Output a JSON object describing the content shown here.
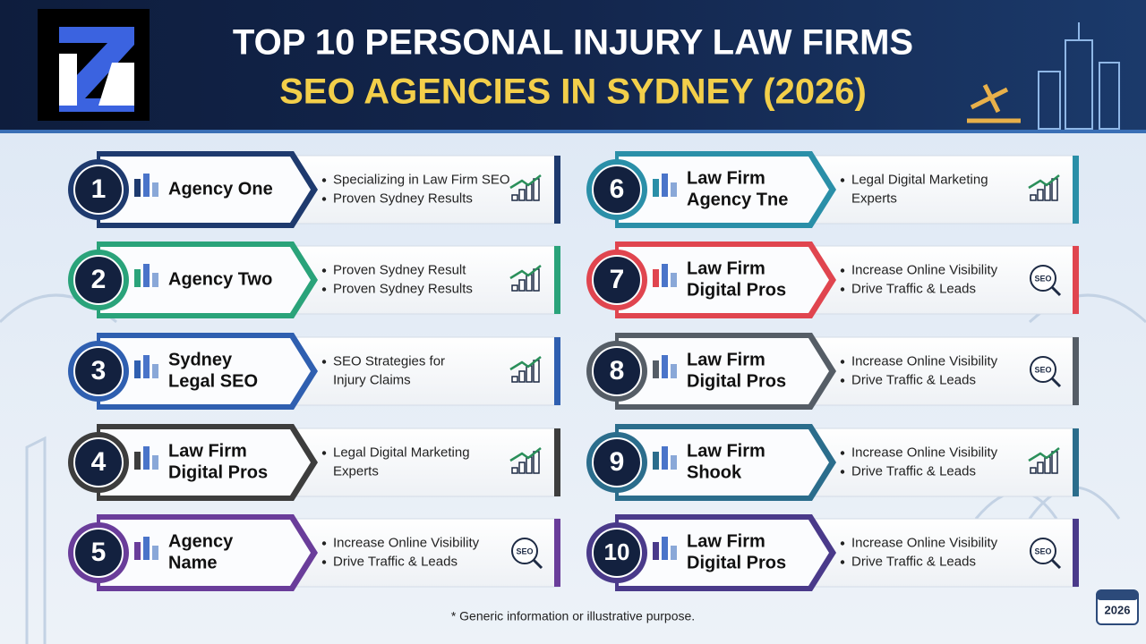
{
  "header": {
    "title_line1": "TOP 10 PERSONAL INJURY LAW FIRMS",
    "title_line2": "SEO AGENCIES IN SYDNEY (2026)"
  },
  "items": [
    {
      "rank": "1",
      "name": [
        "Agency One"
      ],
      "bullets": [
        [
          "Specializing in Law Firm SEO"
        ],
        [
          "Proven Sydney Results"
        ]
      ],
      "color": "#1e3a6e"
    },
    {
      "rank": "2",
      "name": [
        "Agency Two"
      ],
      "bullets": [
        [
          "Proven Sydney Result"
        ],
        [
          "Proven Sydney Results"
        ]
      ],
      "color": "#2aa37a"
    },
    {
      "rank": "3",
      "name": [
        "Sydney",
        "Legal SEO"
      ],
      "bullets": [
        [
          "SEO Strategies for",
          "Injury Claims"
        ]
      ],
      "color": "#2f5fb0"
    },
    {
      "rank": "4",
      "name": [
        "Law Firm",
        "Digital Pros"
      ],
      "bullets": [
        [
          "Legal Digital Marketing",
          "Experts"
        ]
      ],
      "color": "#3d3d3d"
    },
    {
      "rank": "5",
      "name": [
        "Agency",
        "Name"
      ],
      "bullets": [
        [
          "Increase Online Visibility"
        ],
        [
          "Drive Traffic & Leads"
        ]
      ],
      "color": "#6a3d9a",
      "icon_text": "SEO"
    },
    {
      "rank": "6",
      "name": [
        "Law Firm",
        "Agency Tne"
      ],
      "bullets": [
        [
          "Legal Digital Marketing",
          "Experts"
        ]
      ],
      "color": "#2a8fa8"
    },
    {
      "rank": "7",
      "name": [
        "Law Firm",
        "Digital Pros"
      ],
      "bullets": [
        [
          "Increase Online Visibility"
        ],
        [
          "Drive Traffic & Leads"
        ]
      ],
      "color": "#e0454f",
      "icon_text": "SEO"
    },
    {
      "rank": "8",
      "name": [
        "Law Firm",
        "Digital Pros"
      ],
      "bullets": [
        [
          "Increase Online Visibility"
        ],
        [
          "Drive Traffic & Leads"
        ]
      ],
      "color": "#555d66",
      "icon_text": "SEO"
    },
    {
      "rank": "9",
      "name": [
        "Law Firm",
        "Shook"
      ],
      "bullets": [
        [
          "Increase Online Visibility"
        ],
        [
          "Drive Traffic & Leads"
        ]
      ],
      "color": "#2b6d8c"
    },
    {
      "rank": "10",
      "name": [
        "Law Firm",
        "Digital Pros"
      ],
      "bullets": [
        [
          "Increase Online Visibility"
        ],
        [
          "Drive Traffic & Leads"
        ]
      ],
      "color": "#4a3a8a",
      "icon_text": "SEO"
    }
  ],
  "footnote": "* Generic information or illustrative purpose.",
  "badge": "2026"
}
